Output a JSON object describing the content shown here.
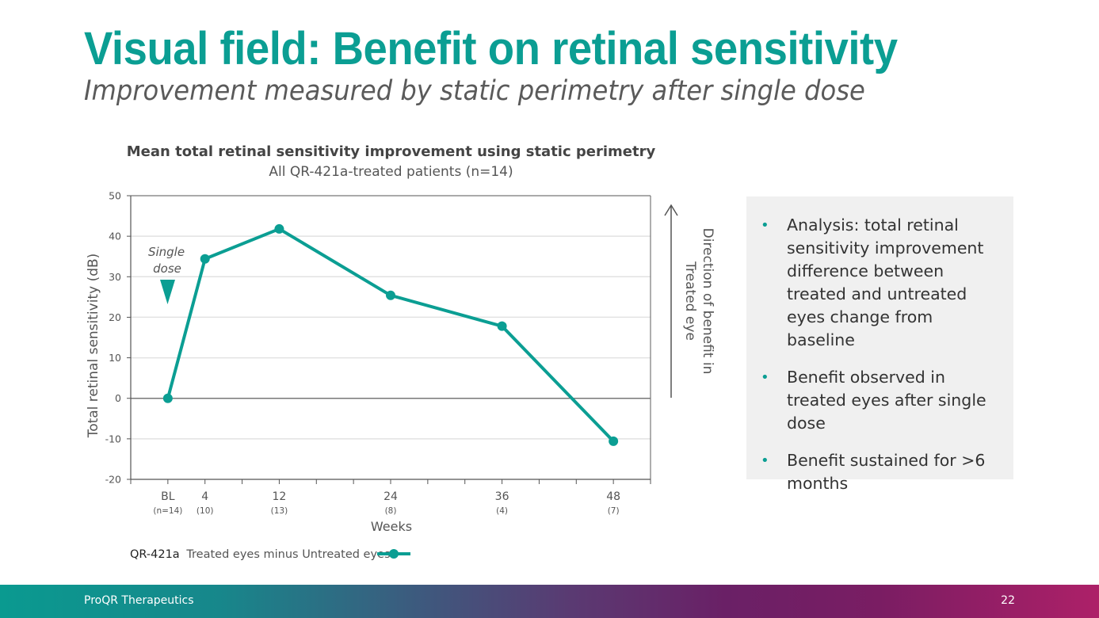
{
  "slide": {
    "title": "Visual field: Benefit on retinal sensitivity",
    "subtitle": "Improvement measured by static perimetry after single dose"
  },
  "chart_data": {
    "type": "line",
    "title": "Mean total retinal sensitivity improvement using static perimetry",
    "subtitle": "All QR-421a-treated patients (n=14)",
    "xlabel": "Weeks",
    "ylabel": "Total retinal sensitivity (dB)",
    "ylim": [
      -20,
      50
    ],
    "yticks": [
      50,
      40,
      30,
      20,
      10,
      0,
      -10,
      -20
    ],
    "xlim": [
      -4,
      52
    ],
    "x_tick_count": 15,
    "grid": true,
    "categories": [
      "BL",
      "4",
      "12",
      "24",
      "36",
      "48"
    ],
    "n_labels": [
      "(n=14)",
      "(10)",
      "(13)",
      "(8)",
      "(4)",
      "(7)"
    ],
    "x": [
      0,
      4,
      12,
      24,
      36,
      48
    ],
    "series": [
      {
        "name": "QR-421a Treated eyes minus Untreated eyes",
        "color": "#0b9e93",
        "values": [
          0,
          34.4,
          41.8,
          25.4,
          17.8,
          -10.6
        ]
      }
    ],
    "legend": {
      "bold_part": "QR-421a",
      "text": "Treated eyes minus Untreated eyes",
      "placement": "bottom-left"
    },
    "annotations": {
      "single_dose_line1": "Single",
      "single_dose_line2": "dose",
      "direction_line1": "Direction of benefit in",
      "direction_line2": "Treated eye"
    }
  },
  "panel": {
    "bullets": [
      "Analysis: total retinal sensitivity improvement difference between treated and untreated eyes change from baseline",
      "Benefit observed in treated eyes after single dose",
      "Benefit sustained for >6 months"
    ],
    "bullet_glyph": "•"
  },
  "footer": {
    "company": "ProQR Therapeutics",
    "page_number": "22"
  }
}
